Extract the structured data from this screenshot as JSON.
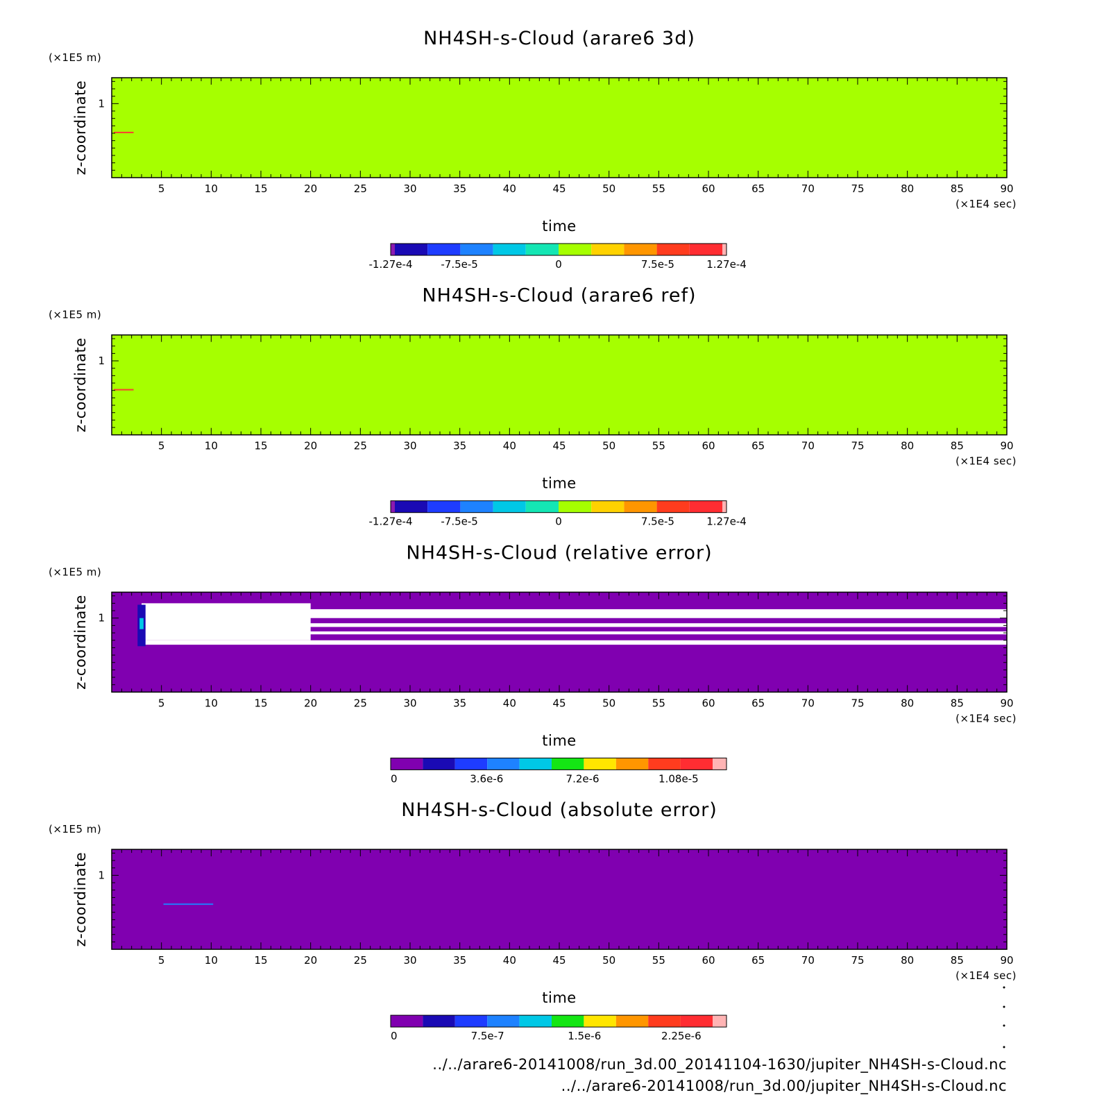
{
  "chart_data": [
    {
      "type": "heatmap",
      "title": "NH4SH-s-Cloud (arare6 3d)",
      "xlabel": "time",
      "ylabel": "z-coordinate",
      "x_unit": "(×1E4 sec)",
      "y_unit": "(×1E5 m)",
      "xlim": [
        0,
        90
      ],
      "ylim": [
        0,
        1.35
      ],
      "xticks": [
        "5",
        "10",
        "15",
        "20",
        "25",
        "30",
        "35",
        "40",
        "45",
        "50",
        "55",
        "60",
        "65",
        "70",
        "75",
        "80",
        "85",
        "90"
      ],
      "yticks": [
        "1"
      ],
      "background_color": "#a6ff00",
      "features": [
        {
          "x": [
            0.2,
            2.2
          ],
          "y": [
            0.6,
            0.62
          ],
          "color": "#ff3333",
          "value": 0.00012
        }
      ],
      "colorbar": {
        "colors": [
          "#8c1ab0",
          "#1a0ab4",
          "#1e3cff",
          "#1e82ff",
          "#00c8e6",
          "#14e6b4",
          "#a6ff00",
          "#ffd200",
          "#ff9600",
          "#ff3c1e",
          "#ff2d32",
          "#ffb4b4"
        ],
        "bounds": [
          -0.000127,
          0.000127
        ],
        "labels": [
          "-1.27e-4",
          "-7.5e-5",
          "0",
          "7.5e-5",
          "1.27e-4"
        ]
      }
    },
    {
      "type": "heatmap",
      "title": "NH4SH-s-Cloud (arare6 ref)",
      "xlabel": "time",
      "ylabel": "z-coordinate",
      "x_unit": "(×1E4 sec)",
      "y_unit": "(×1E5 m)",
      "xlim": [
        0,
        90
      ],
      "ylim": [
        0,
        1.35
      ],
      "xticks": [
        "5",
        "10",
        "15",
        "20",
        "25",
        "30",
        "35",
        "40",
        "45",
        "50",
        "55",
        "60",
        "65",
        "70",
        "75",
        "80",
        "85",
        "90"
      ],
      "yticks": [
        "1"
      ],
      "background_color": "#a6ff00",
      "features": [
        {
          "x": [
            0.2,
            2.2
          ],
          "y": [
            0.6,
            0.62
          ],
          "color": "#ff3333",
          "value": 0.00012
        }
      ],
      "colorbar": {
        "colors": [
          "#8c1ab0",
          "#1a0ab4",
          "#1e3cff",
          "#1e82ff",
          "#00c8e6",
          "#14e6b4",
          "#a6ff00",
          "#ffd200",
          "#ff9600",
          "#ff3c1e",
          "#ff2d32",
          "#ffb4b4"
        ],
        "bounds": [
          -0.000127,
          0.000127
        ],
        "labels": [
          "-1.27e-4",
          "-7.5e-5",
          "0",
          "7.5e-5",
          "1.27e-4"
        ]
      }
    },
    {
      "type": "heatmap",
      "title": "NH4SH-s-Cloud (relative error)",
      "xlabel": "time",
      "ylabel": "z-coordinate",
      "x_unit": "(×1E4 sec)",
      "y_unit": "(×1E5 m)",
      "xlim": [
        0,
        90
      ],
      "ylim": [
        0,
        1.35
      ],
      "xticks": [
        "5",
        "10",
        "15",
        "20",
        "25",
        "30",
        "35",
        "40",
        "45",
        "50",
        "55",
        "60",
        "65",
        "70",
        "75",
        "80",
        "85",
        "90"
      ],
      "yticks": [
        "1"
      ],
      "background_color": "#8000b0",
      "features": [
        {
          "x": [
            2.8,
            90
          ],
          "y": [
            1.0,
            1.12
          ],
          "color": "#ffffff",
          "value": null
        },
        {
          "x": [
            2.8,
            90
          ],
          "y": [
            0.64,
            0.7
          ],
          "color": "#ffffff",
          "value": null
        },
        {
          "x": [
            2.8,
            90
          ],
          "y": [
            0.78,
            0.82
          ],
          "color": "#ffffff",
          "value": null
        },
        {
          "x": [
            2.8,
            90
          ],
          "y": [
            0.88,
            0.93
          ],
          "color": "#ffffff",
          "value": null
        },
        {
          "x": [
            3,
            20
          ],
          "y": [
            0.7,
            1.2
          ],
          "color": "#ffffff",
          "value": null
        },
        {
          "x": [
            2.6,
            3.4
          ],
          "y": [
            0.62,
            1.18
          ],
          "color": "#1a0ab4",
          "value": 1.8e-06
        },
        {
          "x": [
            2.8,
            3.2
          ],
          "y": [
            0.85,
            1.0
          ],
          "color": "#00c8e6",
          "value": 5.4e-06
        }
      ],
      "colorbar": {
        "colors": [
          "#8000b0",
          "#1a0ab4",
          "#1e3cff",
          "#1e82ff",
          "#00c8e6",
          "#14e614",
          "#ffe600",
          "#ff9600",
          "#ff3c1e",
          "#ff2d32",
          "#ffb4b4"
        ],
        "bounds": [
          0,
          1.26e-05
        ],
        "labels": [
          "0",
          "3.6e-6",
          "7.2e-6",
          "1.08e-5"
        ]
      }
    },
    {
      "type": "heatmap",
      "title": "NH4SH-s-Cloud (absolute error)",
      "xlabel": "time",
      "ylabel": "z-coordinate",
      "x_unit": "(×1E4 sec)",
      "y_unit": "(×1E5 m)",
      "xlim": [
        0,
        90
      ],
      "ylim": [
        0,
        1.35
      ],
      "xticks": [
        "5",
        "10",
        "15",
        "20",
        "25",
        "30",
        "35",
        "40",
        "45",
        "50",
        "55",
        "60",
        "65",
        "70",
        "75",
        "80",
        "85",
        "90"
      ],
      "yticks": [
        "1"
      ],
      "background_color": "#8000b0",
      "features": [
        {
          "x": [
            5.2,
            10.2
          ],
          "y": [
            0.6,
            0.62
          ],
          "color": "#1e82ff",
          "value": 9e-07
        }
      ],
      "colorbar": {
        "colors": [
          "#8000b0",
          "#1a0ab4",
          "#1e3cff",
          "#1e82ff",
          "#00c8e6",
          "#14e614",
          "#ffe600",
          "#ff9600",
          "#ff3c1e",
          "#ff2d32",
          "#ffb4b4"
        ],
        "bounds": [
          0,
          2.6e-06
        ],
        "labels": [
          "0",
          "7.5e-7",
          "1.5e-6",
          "2.25e-6"
        ]
      }
    }
  ],
  "sources": [
    "../../arare6-20141008/run_3d.00_20141104-1630/jupiter_NH4SH-s-Cloud.nc",
    "../../arare6-20141008/run_3d.00/jupiter_NH4SH-s-Cloud.nc"
  ]
}
